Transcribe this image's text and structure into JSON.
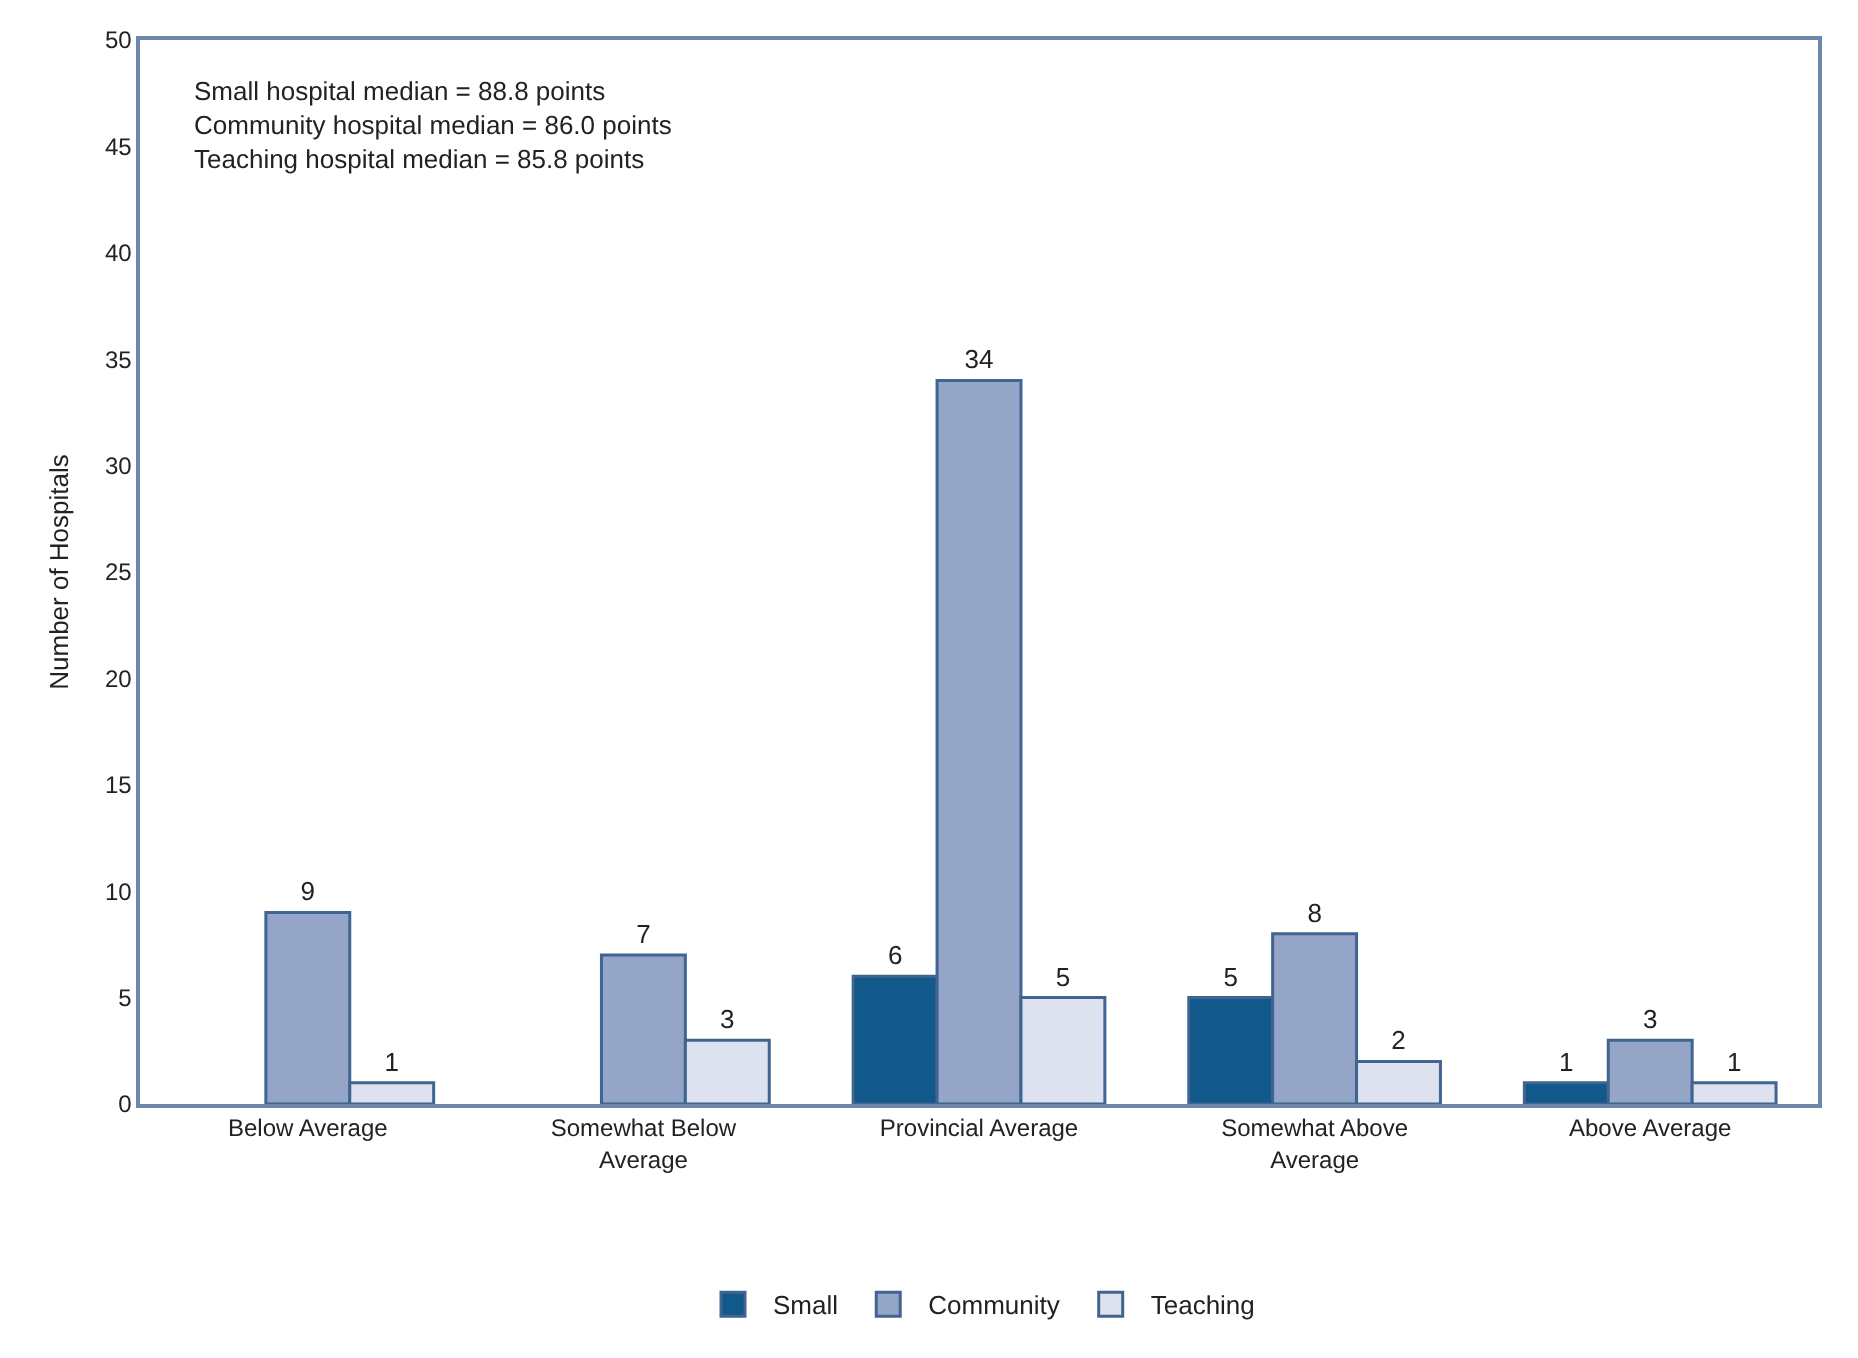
{
  "chart_data": {
    "type": "bar",
    "ylabel": "Number of Hospitals",
    "categories": [
      "Below Average",
      "Somewhat Below\nAverage",
      "Provincial Average",
      "Somewhat Above\nAverage",
      "Above Average"
    ],
    "series": [
      {
        "name": "Small",
        "color": "#10598a",
        "values": [
          null,
          null,
          6,
          5,
          1
        ]
      },
      {
        "name": "Community",
        "color": "#95a5c7",
        "values": [
          9,
          7,
          34,
          8,
          3
        ]
      },
      {
        "name": "Teaching",
        "color": "#dde2ee",
        "values": [
          1,
          3,
          5,
          2,
          1
        ]
      }
    ],
    "ylim": [
      0,
      50
    ],
    "yticks": [
      0,
      5,
      10,
      15,
      20,
      25,
      30,
      35,
      40,
      45,
      50
    ],
    "legend": "bottom",
    "data_labels": true,
    "annotations": [
      "Small hospital median = 88.8 points\nCommunity hospital median = 86.0 points\nTeaching hospital median = 85.8 points"
    ]
  }
}
